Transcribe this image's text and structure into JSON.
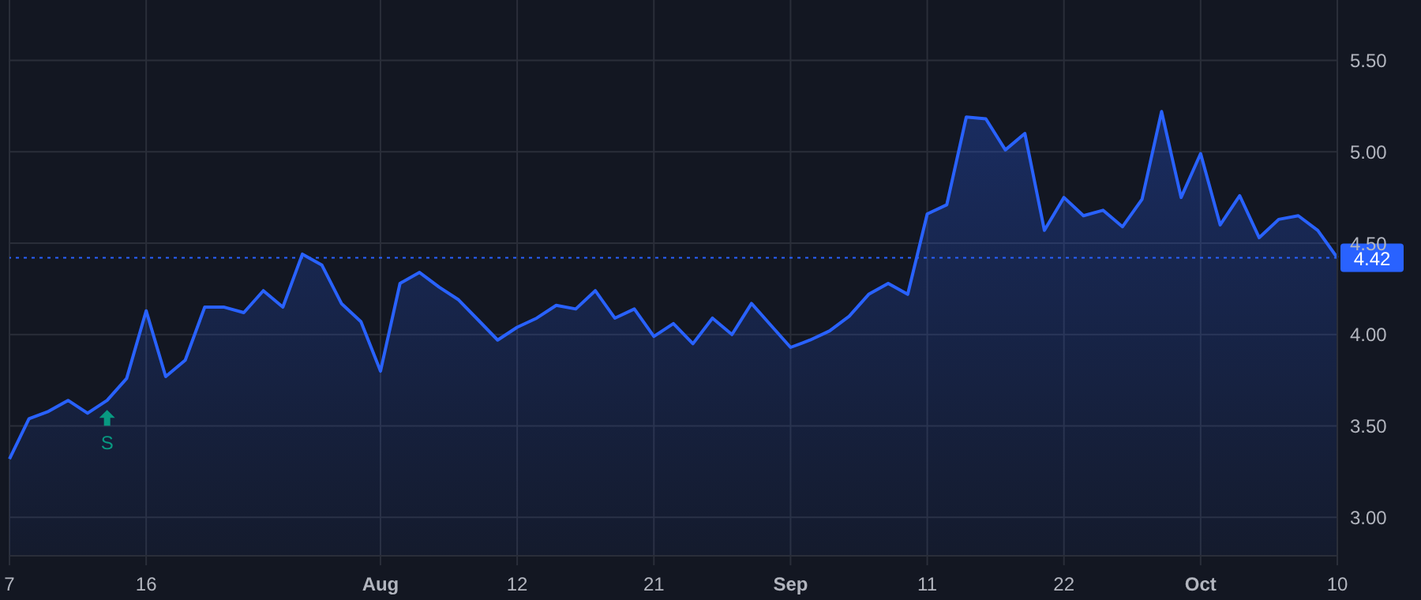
{
  "chart_data": {
    "type": "area",
    "categories": [
      "7",
      null,
      null,
      null,
      null,
      null,
      null,
      "16",
      null,
      null,
      null,
      null,
      null,
      null,
      null,
      null,
      null,
      null,
      null,
      "Aug",
      null,
      null,
      null,
      null,
      null,
      null,
      "12",
      null,
      null,
      null,
      null,
      null,
      null,
      "21",
      null,
      null,
      null,
      null,
      null,
      null,
      "Sep",
      null,
      null,
      null,
      null,
      null,
      null,
      "11",
      null,
      null,
      null,
      null,
      null,
      null,
      "22",
      null,
      null,
      null,
      null,
      null,
      null,
      "Oct",
      null,
      null,
      null,
      null,
      null,
      null,
      "10"
    ],
    "series": [
      {
        "color": "#2962ff",
        "values": [
          3.32,
          3.54,
          3.58,
          3.64,
          3.57,
          3.64,
          3.76,
          4.13,
          3.77,
          3.86,
          4.15,
          4.15,
          4.12,
          4.24,
          4.15,
          4.44,
          4.38,
          4.17,
          4.07,
          3.8,
          4.28,
          4.34,
          4.26,
          4.19,
          4.08,
          3.97,
          4.04,
          4.09,
          4.16,
          4.14,
          4.24,
          4.09,
          4.14,
          3.99,
          4.06,
          3.95,
          4.09,
          4.0,
          4.17,
          4.05,
          3.93,
          3.97,
          4.02,
          4.1,
          4.22,
          4.28,
          4.22,
          4.66,
          4.71,
          5.19,
          5.18,
          5.01,
          5.1,
          4.57,
          4.75,
          4.65,
          4.68,
          4.59,
          4.74,
          5.22,
          4.75,
          4.99,
          4.6,
          4.76,
          4.53,
          4.63,
          4.65,
          4.57,
          4.42
        ]
      }
    ],
    "ylim": [
      2.79,
      5.83
    ],
    "yticks": [
      {
        "value": 3,
        "label": "3.00"
      },
      {
        "value": 3.5,
        "label": "3.50"
      },
      {
        "value": 4,
        "label": "4.00"
      },
      {
        "value": 4.5,
        "label": "4.50"
      },
      {
        "value": 5,
        "label": "5.00"
      },
      {
        "value": 5.5,
        "label": "5.50"
      }
    ],
    "grid": true,
    "marker": "none",
    "line_style": "solid",
    "ref_lines": [
      {
        "axis": "y",
        "value": 4.42,
        "label": "4.42",
        "color": "#2962ff",
        "line_style": "dotted"
      }
    ],
    "annotations": [
      "S"
    ]
  }
}
